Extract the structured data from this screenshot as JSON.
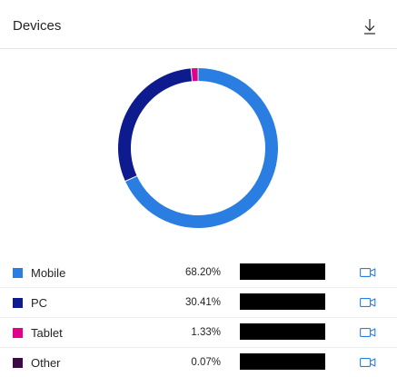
{
  "header": {
    "title": "Devices",
    "download_icon": "download-icon"
  },
  "chart_data": {
    "type": "pie",
    "style": "donut",
    "categories": [
      "Mobile",
      "PC",
      "Tablet",
      "Other"
    ],
    "values": [
      68.2,
      30.41,
      1.33,
      0.07
    ],
    "colors": [
      "#2a7de1",
      "#0d1b8f",
      "#e3008c",
      "#3b0a45"
    ]
  },
  "legend": {
    "rows": [
      {
        "name": "Mobile",
        "percent": "68.20%",
        "color": "#2a7de1",
        "value": 68.2
      },
      {
        "name": "PC",
        "percent": "30.41%",
        "color": "#0d1b8f",
        "value": 30.41
      },
      {
        "name": "Tablet",
        "percent": "1.33%",
        "color": "#e3008c",
        "value": 1.33
      },
      {
        "name": "Other",
        "percent": "0.07%",
        "color": "#3b0a45",
        "value": 0.07
      }
    ],
    "action_icon": "video-camera-icon",
    "accent": "#2a7de1"
  }
}
